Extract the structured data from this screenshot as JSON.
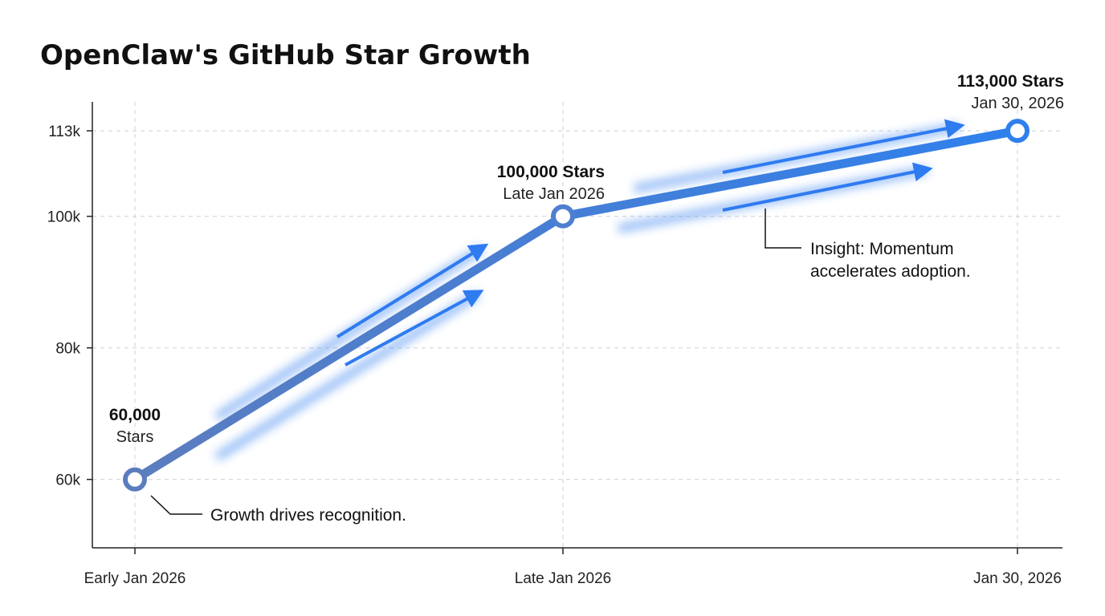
{
  "chart_data": {
    "type": "line",
    "title": "OpenClaw's GitHub Star Growth",
    "xlabel": "",
    "ylabel": "",
    "categories": [
      "Early Jan 2026",
      "Late Jan 2026",
      "Jan 30, 2026"
    ],
    "series": [
      {
        "name": "GitHub Stars",
        "values": [
          60000,
          100000,
          113000
        ]
      }
    ],
    "ylim": [
      49600,
      117400
    ],
    "yticks": [
      60000,
      80000,
      100000,
      113000
    ],
    "ytick_labels": [
      "60k",
      "80k",
      "100k",
      "113k"
    ],
    "grid": true,
    "point_labels": [
      {
        "value": "60,000",
        "caption": "Stars"
      },
      {
        "value": "100,000 Stars",
        "caption": "Late Jan 2026"
      },
      {
        "value": "113,000 Stars",
        "caption": "Jan 30, 2026"
      }
    ],
    "annotations": [
      "Growth drives recognition.",
      "Insight: Momentum",
      "accelerates adoption."
    ],
    "colors": {
      "line_start": "#5b7dbf",
      "line_end": "#2f80ed",
      "arrow": "#2f7bf0",
      "axis": "#222222"
    }
  }
}
